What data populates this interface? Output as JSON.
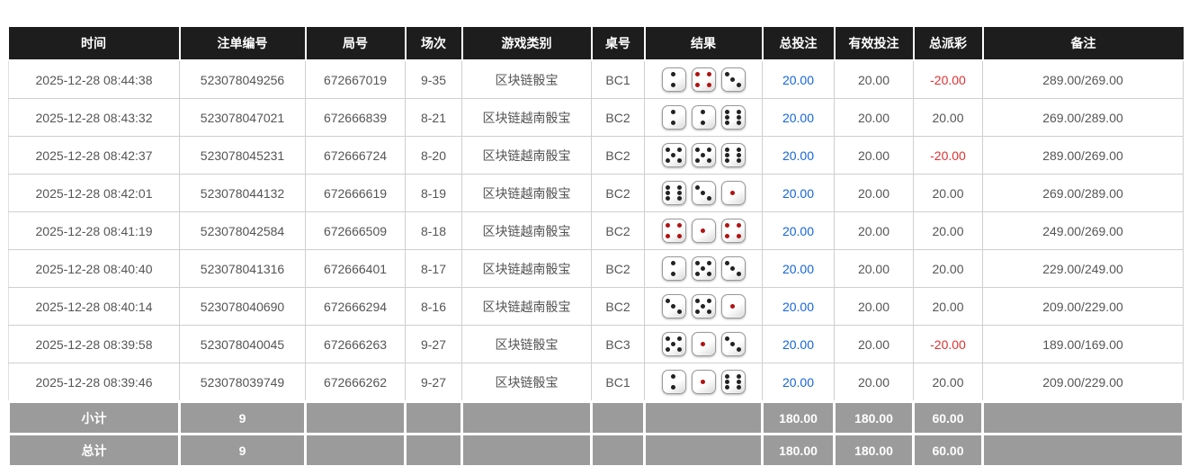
{
  "table": {
    "columns": [
      {
        "key": "time",
        "label": "时间"
      },
      {
        "key": "bet_id",
        "label": "注单编号"
      },
      {
        "key": "round_id",
        "label": "局号"
      },
      {
        "key": "session",
        "label": "场次"
      },
      {
        "key": "game_type",
        "label": "游戏类别"
      },
      {
        "key": "table_no",
        "label": "桌号"
      },
      {
        "key": "result",
        "label": "结果"
      },
      {
        "key": "total_bet",
        "label": "总投注"
      },
      {
        "key": "valid_bet",
        "label": "有效投注"
      },
      {
        "key": "payout",
        "label": "总派彩"
      },
      {
        "key": "remark",
        "label": "备注"
      }
    ],
    "rows": [
      {
        "time": "2025-12-28 08:44:38",
        "bet_id": "523078049256",
        "round_id": "672667019",
        "session": "9-35",
        "game_type": "区块链骰宝",
        "table_no": "BC1",
        "dice": [
          2,
          4,
          3
        ],
        "total_bet": "20.00",
        "valid_bet": "20.00",
        "payout": "-20.00",
        "remark": "289.00/269.00"
      },
      {
        "time": "2025-12-28 08:43:32",
        "bet_id": "523078047021",
        "round_id": "672666839",
        "session": "8-21",
        "game_type": "区块链越南骰宝",
        "table_no": "BC2",
        "dice": [
          2,
          2,
          6
        ],
        "total_bet": "20.00",
        "valid_bet": "20.00",
        "payout": "20.00",
        "remark": "269.00/289.00"
      },
      {
        "time": "2025-12-28 08:42:37",
        "bet_id": "523078045231",
        "round_id": "672666724",
        "session": "8-20",
        "game_type": "区块链越南骰宝",
        "table_no": "BC2",
        "dice": [
          5,
          5,
          6
        ],
        "total_bet": "20.00",
        "valid_bet": "20.00",
        "payout": "-20.00",
        "remark": "289.00/269.00"
      },
      {
        "time": "2025-12-28 08:42:01",
        "bet_id": "523078044132",
        "round_id": "672666619",
        "session": "8-19",
        "game_type": "区块链越南骰宝",
        "table_no": "BC2",
        "dice": [
          6,
          3,
          1
        ],
        "total_bet": "20.00",
        "valid_bet": "20.00",
        "payout": "20.00",
        "remark": "269.00/289.00"
      },
      {
        "time": "2025-12-28 08:41:19",
        "bet_id": "523078042584",
        "round_id": "672666509",
        "session": "8-18",
        "game_type": "区块链越南骰宝",
        "table_no": "BC2",
        "dice": [
          4,
          1,
          4
        ],
        "total_bet": "20.00",
        "valid_bet": "20.00",
        "payout": "20.00",
        "remark": "249.00/269.00"
      },
      {
        "time": "2025-12-28 08:40:40",
        "bet_id": "523078041316",
        "round_id": "672666401",
        "session": "8-17",
        "game_type": "区块链越南骰宝",
        "table_no": "BC2",
        "dice": [
          2,
          5,
          3
        ],
        "total_bet": "20.00",
        "valid_bet": "20.00",
        "payout": "20.00",
        "remark": "229.00/249.00"
      },
      {
        "time": "2025-12-28 08:40:14",
        "bet_id": "523078040690",
        "round_id": "672666294",
        "session": "8-16",
        "game_type": "区块链越南骰宝",
        "table_no": "BC2",
        "dice": [
          3,
          5,
          1
        ],
        "total_bet": "20.00",
        "valid_bet": "20.00",
        "payout": "20.00",
        "remark": "209.00/229.00"
      },
      {
        "time": "2025-12-28 08:39:58",
        "bet_id": "523078040045",
        "round_id": "672666263",
        "session": "9-27",
        "game_type": "区块链骰宝",
        "table_no": "BC3",
        "dice": [
          5,
          1,
          3
        ],
        "total_bet": "20.00",
        "valid_bet": "20.00",
        "payout": "-20.00",
        "remark": "189.00/169.00"
      },
      {
        "time": "2025-12-28 08:39:46",
        "bet_id": "523078039749",
        "round_id": "672666262",
        "session": "9-27",
        "game_type": "区块链骰宝",
        "table_no": "BC1",
        "dice": [
          2,
          1,
          6
        ],
        "total_bet": "20.00",
        "valid_bet": "20.00",
        "payout": "20.00",
        "remark": "209.00/229.00"
      }
    ],
    "summary_rows": [
      {
        "label": "小计",
        "count": "9",
        "total_bet": "180.00",
        "valid_bet": "180.00",
        "payout": "60.00"
      },
      {
        "label": "总计",
        "count": "9",
        "total_bet": "180.00",
        "valid_bet": "180.00",
        "payout": "60.00"
      }
    ]
  },
  "icons": {
    "dice": "dice-icon"
  },
  "colors": {
    "header_bg": "#1d1d1d",
    "header_text": "#ffffff",
    "summary_bg": "#9b9b9b",
    "bet_amount_blue": "#1565d8",
    "negative_red": "#e03030",
    "pip_black": "#222222",
    "pip_red": "#b01212",
    "grid_border": "#cfcfcf"
  }
}
